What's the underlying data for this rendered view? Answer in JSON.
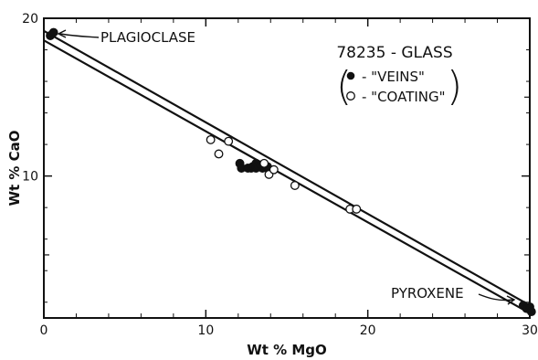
{
  "chart_data": {
    "type": "scatter",
    "title": "78235 - GLASS",
    "xlabel": "Wt % MgO",
    "ylabel": "Wt % CaO",
    "xlim": [
      0,
      30
    ],
    "ylim": [
      1,
      20
    ],
    "x_ticks": [
      0,
      10,
      20,
      30
    ],
    "y_ticks_labeled": [
      10,
      20
    ],
    "y_ticks_minor": [
      5,
      15
    ],
    "grid": false,
    "legend_placement": "top-right",
    "legend_open_paren": "(",
    "legend_close_paren": ")",
    "series": [
      {
        "name": "\"VEINS\"",
        "marker": "filled-circle",
        "legend_label": "- \"VEINS\"",
        "points": [
          [
            0.4,
            18.9
          ],
          [
            0.6,
            19.1
          ],
          [
            12.1,
            10.8
          ],
          [
            12.2,
            10.5
          ],
          [
            12.6,
            10.5
          ],
          [
            12.8,
            10.5
          ],
          [
            12.9,
            10.6
          ],
          [
            13.1,
            10.8
          ],
          [
            13.1,
            10.5
          ],
          [
            13.2,
            10.6
          ],
          [
            13.4,
            10.7
          ],
          [
            13.5,
            10.5
          ],
          [
            13.6,
            10.6
          ],
          [
            13.8,
            10.6
          ],
          [
            13.9,
            10.4
          ],
          [
            29.6,
            1.8
          ],
          [
            29.8,
            1.6
          ],
          [
            30.0,
            1.7
          ],
          [
            30.1,
            1.4
          ]
        ]
      },
      {
        "name": "\"COATING\"",
        "marker": "open-circle",
        "legend_label": "- \"COATING\"",
        "points": [
          [
            10.3,
            12.3
          ],
          [
            10.8,
            11.4
          ],
          [
            11.4,
            12.2
          ],
          [
            13.6,
            10.8
          ],
          [
            13.9,
            10.1
          ],
          [
            14.2,
            10.4
          ],
          [
            15.5,
            9.4
          ],
          [
            18.9,
            7.9
          ],
          [
            19.3,
            7.9
          ]
        ]
      }
    ],
    "reference_lines": [
      {
        "from": [
          0,
          18.6
        ],
        "to": [
          30,
          1.3
        ]
      },
      {
        "from": [
          0,
          19.2
        ],
        "to": [
          30,
          1.8
        ]
      }
    ],
    "annotations": [
      {
        "id": "plagioclase",
        "text": "PLAGIOCLASE",
        "points_to": [
          0.4,
          19.0
        ]
      },
      {
        "id": "pyroxene",
        "text": "PYROXENE",
        "points_to": [
          29.6,
          1.6
        ]
      }
    ]
  }
}
